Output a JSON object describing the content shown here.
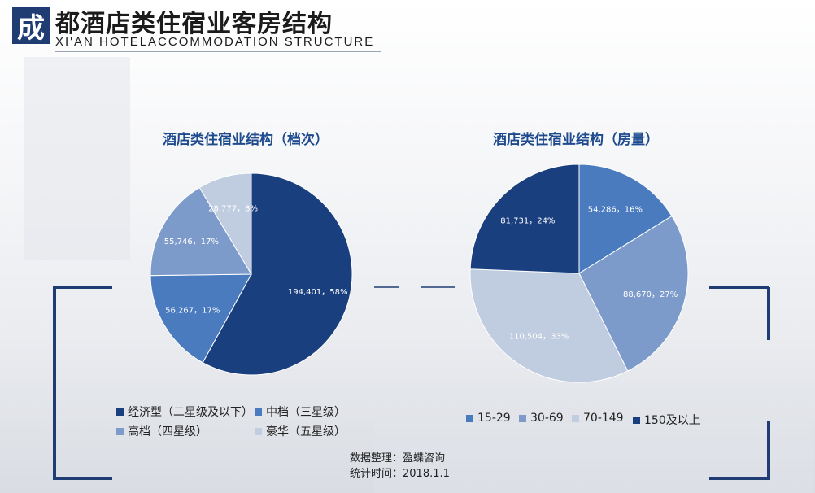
{
  "header": {
    "badge": "成",
    "title": "都酒店类住宿业客房结构",
    "subtitle": "XI'AN HOTELACCOMMODATION STRUCTURE"
  },
  "source": {
    "line1": "数据整理：盈蝶咨询",
    "line2": "统计时间：2018.1.1"
  },
  "colors": {
    "navy": "#1a3f7e",
    "mid": "#4a7bbf",
    "light": "#7c9bcb",
    "pale": "#c0ccdf",
    "frame": "#1f3d73"
  },
  "chart_data": [
    {
      "type": "pie",
      "title": "酒店类住宿业结构（档次）",
      "slices": [
        {
          "name": "经济型（二星级及以下）",
          "value": 194401,
          "percent": 58,
          "label": "194,401，58%",
          "color": "#1a3f7e"
        },
        {
          "name": "中档（三星级）",
          "value": 56267,
          "percent": 17,
          "label": "56,267，17%",
          "color": "#4a7bbf"
        },
        {
          "name": "高档（四星级）",
          "value": 55746,
          "percent": 17,
          "label": "55,746，17%",
          "color": "#7c9bcb"
        },
        {
          "name": "豪华（五星级）",
          "value": 28777,
          "percent": 8,
          "label": "28,777，8%",
          "color": "#c0ccdf"
        }
      ],
      "legend_position": "bottom"
    },
    {
      "type": "pie",
      "title": "酒店类住宿业结构（房量）",
      "slices": [
        {
          "name": "15-29",
          "value": 54286,
          "percent": 16,
          "label": "54,286，16%",
          "color": "#4a7bbf"
        },
        {
          "name": "30-69",
          "value": 88670,
          "percent": 27,
          "label": "88,670，27%",
          "color": "#7c9bcb"
        },
        {
          "name": "70-149",
          "value": 110504,
          "percent": 33,
          "label": "110,504，33%",
          "color": "#c0ccdf"
        },
        {
          "name": "150及以上",
          "value": 81731,
          "percent": 24,
          "label": "81,731，24%",
          "color": "#1a3f7e"
        }
      ],
      "legend_position": "bottom"
    }
  ]
}
